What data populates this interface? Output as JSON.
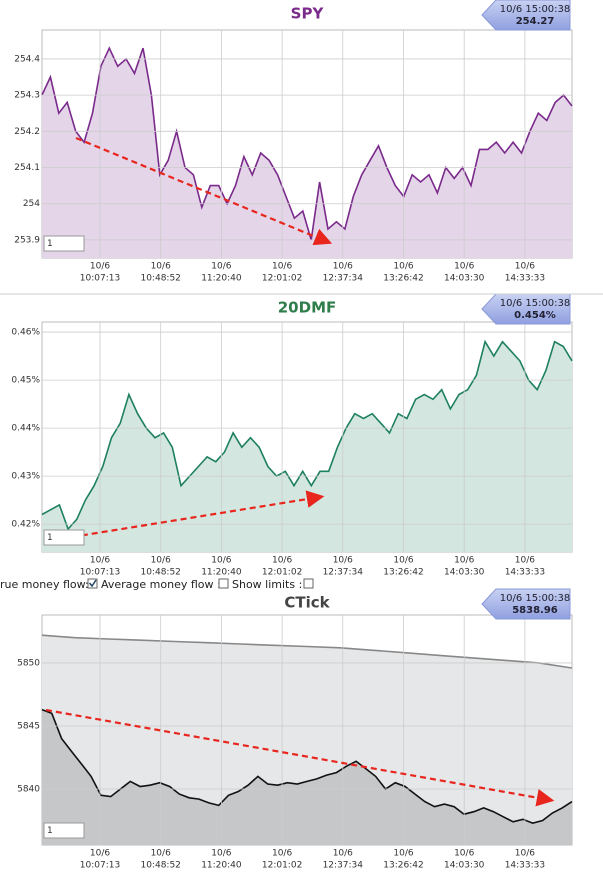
{
  "controls": [
    "rue money flow:",
    "Average money flow :",
    "Show limits :"
  ],
  "chart_data": [
    {
      "type": "line",
      "title": "SPY",
      "title_color": "#7a2a8a",
      "tooltip": {
        "time": "10/6 15:00:38",
        "value": "254.27"
      },
      "input_value": "1",
      "xticks": [
        {
          "date": "10/6",
          "time": "10:07:13"
        },
        {
          "date": "10/6",
          "time": "10:48:52"
        },
        {
          "date": "10/6",
          "time": "11:20:40"
        },
        {
          "date": "10/6",
          "time": "12:01:02"
        },
        {
          "date": "10/6",
          "time": "12:37:34"
        },
        {
          "date": "10/6",
          "time": "13:26:42"
        },
        {
          "date": "10/6",
          "time": "14:03:30"
        },
        {
          "date": "10/6",
          "time": "14:33:33"
        }
      ],
      "ylim": [
        253.85,
        254.48
      ],
      "yticks": [
        253.9,
        254,
        254.1,
        254.2,
        254.3,
        254.4
      ],
      "grid": true,
      "series": [
        {
          "color": "#7a2a8a",
          "fill": "#e4d5e9",
          "values": [
            254.3,
            254.35,
            254.25,
            254.28,
            254.2,
            254.17,
            254.25,
            254.38,
            254.43,
            254.38,
            254.4,
            254.36,
            254.43,
            254.3,
            254.08,
            254.12,
            254.2,
            254.1,
            254.08,
            253.99,
            254.05,
            254.05,
            254.0,
            254.05,
            254.13,
            254.08,
            254.14,
            254.12,
            254.08,
            254.02,
            253.96,
            253.98,
            253.9,
            254.06,
            253.93,
            253.95,
            253.93,
            254.02,
            254.08,
            254.12,
            254.16,
            254.1,
            254.05,
            254.02,
            254.08,
            254.06,
            254.08,
            254.03,
            254.1,
            254.07,
            254.1,
            254.05,
            254.15,
            254.15,
            254.17,
            254.14,
            254.17,
            254.14,
            254.2,
            254.25,
            254.23,
            254.28,
            254.3,
            254.27
          ]
        }
      ]
    },
    {
      "type": "line",
      "title": "20DMF",
      "title_color": "#2e7d4a",
      "tooltip": {
        "time": "10/6 15:00:38",
        "value": "0.454%"
      },
      "input_value": "1",
      "xticks": [
        {
          "date": "10/6",
          "time": "10:07:13"
        },
        {
          "date": "10/6",
          "time": "10:48:52"
        },
        {
          "date": "10/6",
          "time": "11:20:40"
        },
        {
          "date": "10/6",
          "time": "12:01:02"
        },
        {
          "date": "10/6",
          "time": "12:37:34"
        },
        {
          "date": "10/6",
          "time": "13:26:42"
        },
        {
          "date": "10/6",
          "time": "14:03:30"
        },
        {
          "date": "10/6",
          "time": "14:33:33"
        }
      ],
      "ylim": [
        0.4142,
        0.4621
      ],
      "yticks": [
        {
          "value": 0.42,
          "label": "0.42%"
        },
        {
          "value": 0.43,
          "label": "0.43%"
        },
        {
          "value": 0.44,
          "label": "0.44%"
        },
        {
          "value": 0.45,
          "label": "0.45%"
        },
        {
          "value": 0.46,
          "label": "0.46%"
        }
      ],
      "grid": true,
      "series": [
        {
          "color": "#1e8060",
          "fill": "#d3e6df",
          "values": [
            0.422,
            0.423,
            0.424,
            0.419,
            0.421,
            0.425,
            0.428,
            0.432,
            0.438,
            0.441,
            0.447,
            0.443,
            0.44,
            0.438,
            0.439,
            0.436,
            0.428,
            0.43,
            0.432,
            0.434,
            0.433,
            0.435,
            0.439,
            0.436,
            0.438,
            0.436,
            0.432,
            0.43,
            0.431,
            0.428,
            0.431,
            0.428,
            0.431,
            0.431,
            0.436,
            0.44,
            0.443,
            0.442,
            0.443,
            0.441,
            0.439,
            0.443,
            0.442,
            0.446,
            0.447,
            0.446,
            0.448,
            0.444,
            0.447,
            0.448,
            0.451,
            0.458,
            0.455,
            0.458,
            0.456,
            0.454,
            0.45,
            0.448,
            0.452,
            0.458,
            0.457,
            0.454
          ]
        }
      ]
    },
    {
      "type": "line",
      "title": "CTick",
      "title_color": "#444444",
      "tooltip": {
        "time": "10/6 15:00:38",
        "value": "5838.96"
      },
      "input_value": "1",
      "xticks": [
        {
          "date": "10/6",
          "time": "10:07:13"
        },
        {
          "date": "10/6",
          "time": "10:48:52"
        },
        {
          "date": "10/6",
          "time": "11:20:40"
        },
        {
          "date": "10/6",
          "time": "12:01:02"
        },
        {
          "date": "10/6",
          "time": "12:37:34"
        },
        {
          "date": "10/6",
          "time": "13:26:42"
        },
        {
          "date": "10/6",
          "time": "14:03:30"
        },
        {
          "date": "10/6",
          "time": "14:33:33"
        }
      ],
      "ylim": [
        5835.56,
        5853.8
      ],
      "yticks": [
        5840,
        5845,
        5850
      ],
      "grid": true,
      "series": [
        {
          "color": "#888888",
          "fill": "#e6e7e9",
          "values": [
            5852.2,
            5852.0,
            5851.9,
            5851.8,
            5851.7,
            5851.6,
            5851.5,
            5851.4,
            5851.3,
            5851.2,
            5851.0,
            5850.8,
            5850.6,
            5850.4,
            5850.2,
            5850.0,
            5849.6
          ]
        },
        {
          "color": "#111111",
          "fill": "#c6c7c8",
          "values": [
            5846.3,
            5846,
            5844,
            5843,
            5842,
            5841,
            5839.5,
            5839.4,
            5840,
            5840.6,
            5840.2,
            5840.3,
            5840.5,
            5840.2,
            5839.6,
            5839.3,
            5839.2,
            5838.9,
            5838.7,
            5839.5,
            5839.8,
            5840.3,
            5841,
            5840.4,
            5840.3,
            5840.5,
            5840.4,
            5840.6,
            5840.8,
            5841.1,
            5841.3,
            5841.8,
            5842.2,
            5841.6,
            5841,
            5840,
            5840.5,
            5840.2,
            5839.6,
            5839,
            5838.6,
            5838.8,
            5838.6,
            5838,
            5838.2,
            5838.5,
            5838.2,
            5837.8,
            5837.4,
            5837.6,
            5837.3,
            5837.5,
            5838.1,
            5838.5,
            5839
          ]
        }
      ]
    }
  ]
}
